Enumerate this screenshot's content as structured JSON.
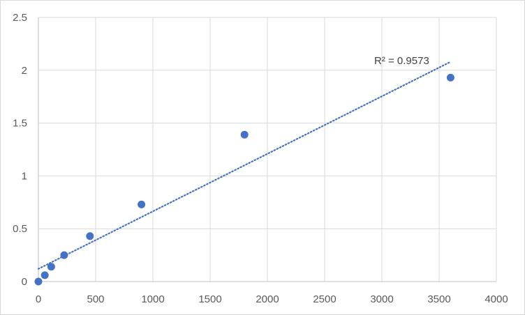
{
  "chart_data": {
    "type": "scatter",
    "title": "",
    "xlabel": "",
    "ylabel": "",
    "xlim": [
      0,
      4000
    ],
    "ylim": [
      0,
      2.5
    ],
    "x_ticks": [
      0,
      500,
      1000,
      1500,
      2000,
      2500,
      3000,
      3500,
      4000
    ],
    "y_ticks": [
      0,
      0.5,
      1,
      1.5,
      2,
      2.5
    ],
    "x_tick_labels": [
      "0",
      "500",
      "1000",
      "1500",
      "2000",
      "2500",
      "3000",
      "3500",
      "4000"
    ],
    "y_tick_labels": [
      "0",
      "0.5",
      "1",
      "1.5",
      "2",
      "2.5"
    ],
    "grid": true,
    "series": [
      {
        "x": [
          0,
          56,
          112,
          225,
          450,
          900,
          1800,
          3600
        ],
        "y": [
          0.0,
          0.06,
          0.14,
          0.25,
          0.43,
          0.73,
          1.39,
          1.93
        ],
        "color": "#4472c4"
      }
    ],
    "trendline": {
      "type": "linear",
      "x": [
        0,
        3600
      ],
      "y": [
        0.12,
        2.08
      ],
      "color": "#4472c4",
      "style": "dotted"
    },
    "annotation": "R² = 0.9573"
  }
}
